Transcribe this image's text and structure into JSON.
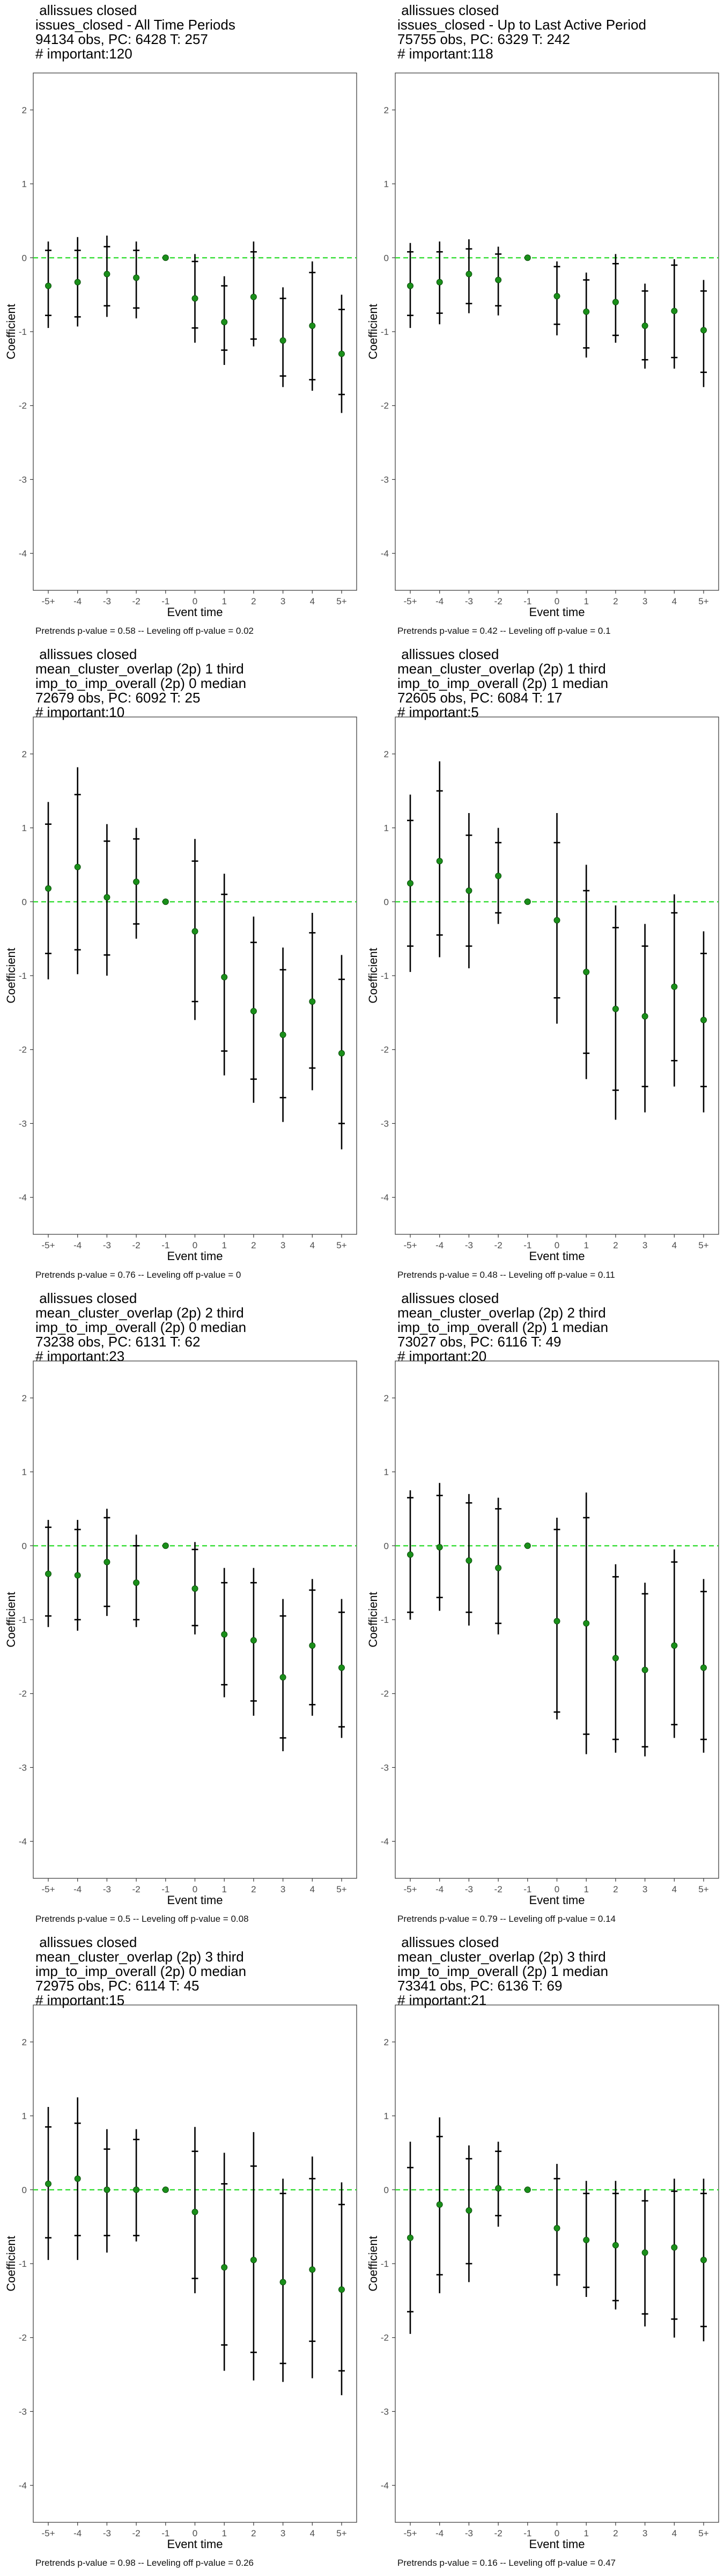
{
  "common": {
    "xlabel": "Event time",
    "ylabel": "Coefficient",
    "ylim": [
      -4.5,
      2.5
    ],
    "yticks": [
      -4,
      -3,
      -2,
      -1,
      0,
      1,
      2
    ],
    "categories": [
      "-5+",
      "-4",
      "-3",
      "-2",
      "-1",
      "0",
      "1",
      "2",
      "3",
      "4",
      "5+"
    ],
    "colors": {
      "point": "#1a8f1a",
      "zero_line": "#33dd33",
      "bars": "#000000",
      "axis_text": "#4d4d4d"
    }
  },
  "panels": [
    {
      "header": [
        "allissues closed",
        "issues_closed - All Time Periods",
        "94134 obs, PC: 6428 T: 257",
        "# important:120"
      ],
      "footnote": "Pretrends p-value = 0.58 -- Leveling off p-value = 0.02",
      "coef": [
        -0.38,
        -0.33,
        -0.22,
        -0.27,
        0.0,
        -0.55,
        -0.87,
        -0.53,
        -1.12,
        -0.92,
        -1.3
      ],
      "ci95": [
        [
          -0.95,
          0.22
        ],
        [
          -0.93,
          0.28
        ],
        [
          -0.8,
          0.3
        ],
        [
          -0.82,
          0.22
        ],
        [
          0.0,
          0.0
        ],
        [
          -1.15,
          0.05
        ],
        [
          -1.45,
          -0.25
        ],
        [
          -1.2,
          0.22
        ],
        [
          -1.75,
          -0.4
        ],
        [
          -1.8,
          -0.05
        ],
        [
          -2.1,
          -0.5
        ]
      ],
      "ci90": [
        [
          -0.78,
          0.1
        ],
        [
          -0.8,
          0.1
        ],
        [
          -0.65,
          0.15
        ],
        [
          -0.68,
          0.1
        ],
        [
          0.0,
          0.0
        ],
        [
          -0.95,
          -0.05
        ],
        [
          -1.25,
          -0.38
        ],
        [
          -1.1,
          0.08
        ],
        [
          -1.6,
          -0.55
        ],
        [
          -1.65,
          -0.2
        ],
        [
          -1.85,
          -0.7
        ]
      ]
    },
    {
      "header": [
        "allissues closed",
        "issues_closed - Up to Last Active Period",
        "75755 obs, PC: 6329 T: 242",
        "# important:118"
      ],
      "footnote": "Pretrends p-value = 0.42 -- Leveling off p-value = 0.1",
      "coef": [
        -0.38,
        -0.33,
        -0.22,
        -0.3,
        0.0,
        -0.52,
        -0.73,
        -0.6,
        -0.92,
        -0.72,
        -0.98
      ],
      "ci95": [
        [
          -0.95,
          0.2
        ],
        [
          -0.9,
          0.22
        ],
        [
          -0.75,
          0.25
        ],
        [
          -0.78,
          0.15
        ],
        [
          0.0,
          0.0
        ],
        [
          -1.05,
          -0.05
        ],
        [
          -1.35,
          -0.2
        ],
        [
          -1.15,
          0.05
        ],
        [
          -1.5,
          -0.35
        ],
        [
          -1.5,
          -0.02
        ],
        [
          -1.75,
          -0.3
        ]
      ],
      "ci90": [
        [
          -0.78,
          0.08
        ],
        [
          -0.75,
          0.08
        ],
        [
          -0.62,
          0.12
        ],
        [
          -0.65,
          0.05
        ],
        [
          0.0,
          0.0
        ],
        [
          -0.9,
          -0.12
        ],
        [
          -1.22,
          -0.3
        ],
        [
          -1.05,
          -0.08
        ],
        [
          -1.38,
          -0.45
        ],
        [
          -1.35,
          -0.1
        ],
        [
          -1.55,
          -0.45
        ]
      ]
    },
    {
      "header": [
        "allissues closed",
        "mean_cluster_overlap (2p) 1 third",
        "imp_to_imp_overall (2p) 0 median",
        "72679 obs, PC: 6092 T: 25",
        "# important:10"
      ],
      "footnote": "Pretrends p-value = 0.76 -- Leveling off p-value = 0",
      "coef": [
        0.18,
        0.47,
        0.06,
        0.27,
        0.0,
        -0.4,
        -1.02,
        -1.48,
        -1.8,
        -1.35,
        -2.05
      ],
      "ci95": [
        [
          -1.05,
          1.35
        ],
        [
          -0.98,
          1.82
        ],
        [
          -1.0,
          1.05
        ],
        [
          -0.5,
          1.0
        ],
        [
          0.0,
          0.0
        ],
        [
          -1.6,
          0.85
        ],
        [
          -2.35,
          0.38
        ],
        [
          -2.72,
          -0.2
        ],
        [
          -2.98,
          -0.62
        ],
        [
          -2.55,
          -0.15
        ],
        [
          -3.35,
          -0.72
        ]
      ],
      "ci90": [
        [
          -0.7,
          1.05
        ],
        [
          -0.65,
          1.45
        ],
        [
          -0.72,
          0.82
        ],
        [
          -0.3,
          0.85
        ],
        [
          0.0,
          0.0
        ],
        [
          -1.35,
          0.55
        ],
        [
          -2.02,
          0.1
        ],
        [
          -2.4,
          -0.55
        ],
        [
          -2.65,
          -0.92
        ],
        [
          -2.25,
          -0.42
        ],
        [
          -3.0,
          -1.05
        ]
      ]
    },
    {
      "header": [
        "allissues closed",
        "mean_cluster_overlap (2p) 1 third",
        "imp_to_imp_overall (2p) 1 median",
        "72605 obs, PC: 6084 T: 17",
        "# important:5"
      ],
      "footnote": "Pretrends p-value = 0.48 -- Leveling off p-value = 0.11",
      "coef": [
        0.25,
        0.55,
        0.15,
        0.35,
        0.0,
        -0.25,
        -0.95,
        -1.45,
        -1.55,
        -1.15,
        -1.6
      ],
      "ci95": [
        [
          -0.95,
          1.45
        ],
        [
          -0.75,
          1.9
        ],
        [
          -0.9,
          1.2
        ],
        [
          -0.3,
          1.0
        ],
        [
          0.0,
          0.0
        ],
        [
          -1.65,
          1.2
        ],
        [
          -2.4,
          0.5
        ],
        [
          -2.95,
          -0.05
        ],
        [
          -2.85,
          -0.3
        ],
        [
          -2.5,
          0.1
        ],
        [
          -2.85,
          -0.4
        ]
      ],
      "ci90": [
        [
          -0.6,
          1.1
        ],
        [
          -0.45,
          1.5
        ],
        [
          -0.6,
          0.9
        ],
        [
          -0.15,
          0.8
        ],
        [
          0.0,
          0.0
        ],
        [
          -1.3,
          0.8
        ],
        [
          -2.05,
          0.15
        ],
        [
          -2.55,
          -0.35
        ],
        [
          -2.5,
          -0.6
        ],
        [
          -2.15,
          -0.15
        ],
        [
          -2.5,
          -0.7
        ]
      ]
    },
    {
      "header": [
        "allissues closed",
        "mean_cluster_overlap (2p) 2 third",
        "imp_to_imp_overall (2p) 0 median",
        "73238 obs, PC: 6131 T: 62",
        "# important:23"
      ],
      "footnote": "Pretrends p-value = 0.5 -- Leveling off p-value = 0.08",
      "coef": [
        -0.38,
        -0.4,
        -0.22,
        -0.5,
        0.0,
        -0.58,
        -1.2,
        -1.28,
        -1.78,
        -1.35,
        -1.65
      ],
      "ci95": [
        [
          -1.1,
          0.35
        ],
        [
          -1.15,
          0.35
        ],
        [
          -0.95,
          0.5
        ],
        [
          -1.1,
          0.15
        ],
        [
          0.0,
          0.0
        ],
        [
          -1.2,
          0.05
        ],
        [
          -2.05,
          -0.3
        ],
        [
          -2.3,
          -0.3
        ],
        [
          -2.78,
          -0.72
        ],
        [
          -2.3,
          -0.45
        ],
        [
          -2.6,
          -0.72
        ]
      ],
      "ci90": [
        [
          -0.95,
          0.25
        ],
        [
          -1.0,
          0.22
        ],
        [
          -0.82,
          0.38
        ],
        [
          -1.0,
          0.0
        ],
        [
          0.0,
          0.0
        ],
        [
          -1.08,
          -0.05
        ],
        [
          -1.88,
          -0.5
        ],
        [
          -2.1,
          -0.5
        ],
        [
          -2.6,
          -0.95
        ],
        [
          -2.15,
          -0.6
        ],
        [
          -2.45,
          -0.9
        ]
      ]
    },
    {
      "header": [
        "allissues closed",
        "mean_cluster_overlap (2p) 2 third",
        "imp_to_imp_overall (2p) 1 median",
        "73027 obs, PC: 6116 T: 49",
        "# important:20"
      ],
      "footnote": "Pretrends p-value = 0.79 -- Leveling off p-value = 0.14",
      "coef": [
        -0.12,
        -0.02,
        -0.2,
        -0.3,
        0.0,
        -1.02,
        -1.05,
        -1.52,
        -1.68,
        -1.35,
        -1.65
      ],
      "ci95": [
        [
          -1.0,
          0.75
        ],
        [
          -0.88,
          0.85
        ],
        [
          -1.08,
          0.7
        ],
        [
          -1.2,
          0.65
        ],
        [
          0.0,
          0.0
        ],
        [
          -2.35,
          0.38
        ],
        [
          -2.82,
          0.72
        ],
        [
          -2.8,
          -0.25
        ],
        [
          -2.85,
          -0.5
        ],
        [
          -2.6,
          -0.05
        ],
        [
          -2.8,
          -0.45
        ]
      ],
      "ci90": [
        [
          -0.9,
          0.65
        ],
        [
          -0.7,
          0.68
        ],
        [
          -0.9,
          0.58
        ],
        [
          -1.05,
          0.5
        ],
        [
          0.0,
          0.0
        ],
        [
          -2.25,
          0.22
        ],
        [
          -2.55,
          0.38
        ],
        [
          -2.62,
          -0.42
        ],
        [
          -2.72,
          -0.65
        ],
        [
          -2.42,
          -0.22
        ],
        [
          -2.62,
          -0.62
        ]
      ]
    },
    {
      "header": [
        "allissues closed",
        "mean_cluster_overlap (2p) 3 third",
        "imp_to_imp_overall (2p) 0 median",
        "72975 obs, PC: 6114 T: 45",
        "# important:15"
      ],
      "footnote": "Pretrends p-value = 0.98 -- Leveling off p-value = 0.26",
      "coef": [
        0.08,
        0.15,
        0.0,
        0.0,
        0.0,
        -0.3,
        -1.05,
        -0.95,
        -1.25,
        -1.08,
        -1.35
      ],
      "ci95": [
        [
          -0.95,
          1.12
        ],
        [
          -0.95,
          1.25
        ],
        [
          -0.85,
          0.82
        ],
        [
          -0.7,
          0.82
        ],
        [
          0.0,
          0.0
        ],
        [
          -1.4,
          0.85
        ],
        [
          -2.45,
          0.5
        ],
        [
          -2.58,
          0.78
        ],
        [
          -2.6,
          0.15
        ],
        [
          -2.55,
          0.45
        ],
        [
          -2.78,
          0.1
        ]
      ],
      "ci90": [
        [
          -0.65,
          0.85
        ],
        [
          -0.62,
          0.9
        ],
        [
          -0.62,
          0.55
        ],
        [
          -0.62,
          0.68
        ],
        [
          0.0,
          0.0
        ],
        [
          -1.2,
          0.52
        ],
        [
          -2.1,
          0.08
        ],
        [
          -2.2,
          0.32
        ],
        [
          -2.35,
          -0.05
        ],
        [
          -2.05,
          0.15
        ],
        [
          -2.45,
          -0.2
        ]
      ]
    },
    {
      "header": [
        "allissues closed",
        "mean_cluster_overlap (2p) 3 third",
        "imp_to_imp_overall (2p) 1 median",
        "73341 obs, PC: 6136 T: 69",
        "# important:21"
      ],
      "footnote": "Pretrends p-value = 0.16 -- Leveling off p-value = 0.47",
      "coef": [
        -0.65,
        -0.2,
        -0.28,
        0.02,
        0.0,
        -0.52,
        -0.68,
        -0.75,
        -0.85,
        -0.78,
        -0.95
      ],
      "ci95": [
        [
          -1.95,
          0.65
        ],
        [
          -1.4,
          0.98
        ],
        [
          -1.25,
          0.6
        ],
        [
          -0.5,
          0.65
        ],
        [
          0.0,
          0.0
        ],
        [
          -1.3,
          0.35
        ],
        [
          -1.45,
          0.12
        ],
        [
          -1.62,
          0.12
        ],
        [
          -1.85,
          0.0
        ],
        [
          -2.0,
          0.15
        ],
        [
          -2.05,
          0.15
        ]
      ],
      "ci90": [
        [
          -1.65,
          0.3
        ],
        [
          -1.15,
          0.72
        ],
        [
          -1.0,
          0.42
        ],
        [
          -0.35,
          0.52
        ],
        [
          0.0,
          0.0
        ],
        [
          -1.15,
          0.15
        ],
        [
          -1.32,
          -0.05
        ],
        [
          -1.5,
          -0.05
        ],
        [
          -1.68,
          -0.15
        ],
        [
          -1.75,
          -0.02
        ],
        [
          -1.85,
          -0.05
        ]
      ]
    }
  ],
  "chart_data": {
    "type": "scatter",
    "title": "",
    "xlabel": "Event time",
    "ylabel": "Coefficient",
    "ylim": [
      -4.5,
      2.5
    ],
    "grid": false,
    "legend": "none",
    "categories": [
      "-5+",
      "-4",
      "-3",
      "-2",
      "-1",
      "0",
      "1",
      "2",
      "3",
      "4",
      "5+"
    ],
    "panels": 8
  }
}
